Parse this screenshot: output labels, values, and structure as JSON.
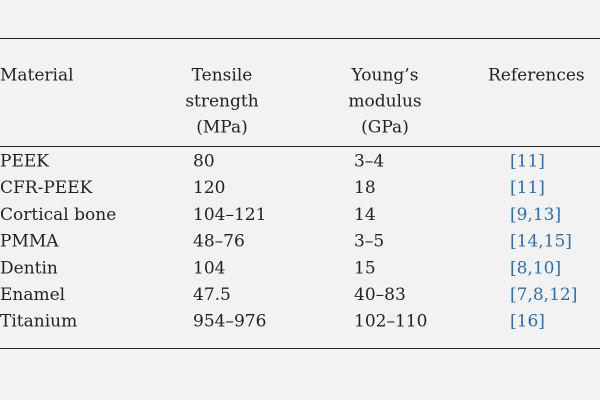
{
  "table": {
    "header": [
      [
        "Material"
      ],
      [
        "Tensile",
        "strength",
        "(MPa)"
      ],
      [
        "Young’s",
        "modulus",
        "(GPa)"
      ],
      [
        "References"
      ]
    ],
    "rows": [
      [
        "PEEK",
        "80",
        "3–4",
        "[11]"
      ],
      [
        "CFR-PEEK",
        "120",
        "18",
        "[11]"
      ],
      [
        "Cortical bone",
        "104–121",
        "14",
        "[9,13]"
      ],
      [
        "PMMA",
        "48–76",
        "3–5",
        "[14,15]"
      ],
      [
        "Dentin",
        "104",
        "15",
        "[8,10]"
      ],
      [
        "Enamel",
        "47.5",
        "40–83",
        "[7,8,12]"
      ],
      [
        "Titanium",
        "954–976",
        "102–110",
        "[16]"
      ]
    ]
  }
}
